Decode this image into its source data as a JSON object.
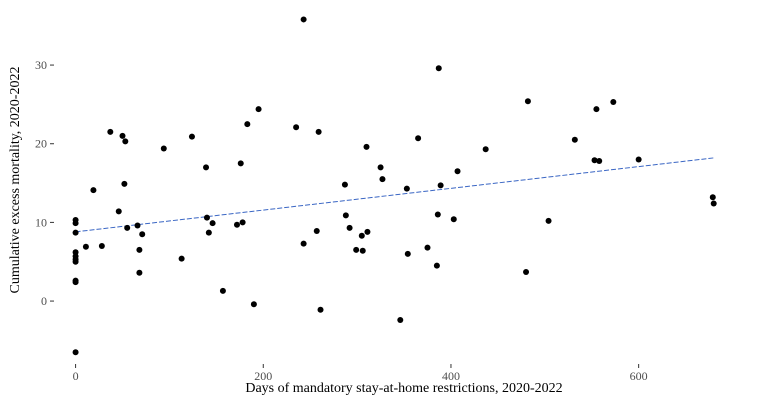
{
  "chart_data": {
    "type": "scatter",
    "xlabel": "Days of mandatory stay-at-home restrictions, 2020-2022",
    "ylabel": "Cumulative excess mortality, 2020-2022",
    "xlim": [
      -23,
      708
    ],
    "ylim": [
      -8,
      37
    ],
    "x_ticks": [
      0,
      200,
      400,
      600
    ],
    "y_ticks": [
      0,
      10,
      20,
      30
    ],
    "grid": false,
    "trend_line": {
      "style": "dashed",
      "color": "#3a66c4",
      "x": [
        0,
        680
      ],
      "y": [
        8.8,
        18.2
      ]
    },
    "point_color": "#000000",
    "points": [
      [
        0,
        -6.5
      ],
      [
        0,
        2.4
      ],
      [
        0,
        2.6
      ],
      [
        0,
        5.0
      ],
      [
        0,
        5.3
      ],
      [
        0,
        5.7
      ],
      [
        0,
        6.2
      ],
      [
        0,
        8.7
      ],
      [
        0,
        9.9
      ],
      [
        0,
        10.3
      ],
      [
        11,
        6.9
      ],
      [
        19,
        14.1
      ],
      [
        28,
        7.0
      ],
      [
        37,
        21.5
      ],
      [
        46,
        11.4
      ],
      [
        50,
        21.0
      ],
      [
        52,
        14.9
      ],
      [
        53,
        20.3
      ],
      [
        55,
        9.3
      ],
      [
        66,
        9.6
      ],
      [
        68,
        3.6
      ],
      [
        68,
        6.5
      ],
      [
        71,
        8.5
      ],
      [
        94,
        19.4
      ],
      [
        113,
        5.4
      ],
      [
        124,
        20.9
      ],
      [
        139,
        17.0
      ],
      [
        140,
        10.6
      ],
      [
        142,
        8.7
      ],
      [
        146,
        9.9
      ],
      [
        157,
        1.3
      ],
      [
        172,
        9.7
      ],
      [
        176,
        17.5
      ],
      [
        178,
        10.0
      ],
      [
        183,
        22.5
      ],
      [
        190,
        -0.4
      ],
      [
        195,
        24.4
      ],
      [
        235,
        22.1
      ],
      [
        243,
        35.8
      ],
      [
        243,
        7.3
      ],
      [
        257,
        8.9
      ],
      [
        259,
        21.5
      ],
      [
        261,
        -1.1
      ],
      [
        287,
        14.8
      ],
      [
        288,
        10.9
      ],
      [
        292,
        9.3
      ],
      [
        299,
        6.5
      ],
      [
        305,
        8.3
      ],
      [
        306,
        6.4
      ],
      [
        310,
        19.6
      ],
      [
        311,
        8.8
      ],
      [
        325,
        17.0
      ],
      [
        327,
        15.5
      ],
      [
        346,
        -2.4
      ],
      [
        353,
        14.3
      ],
      [
        354,
        6.0
      ],
      [
        365,
        20.7
      ],
      [
        375,
        6.8
      ],
      [
        385,
        4.5
      ],
      [
        386,
        11.0
      ],
      [
        387,
        29.6
      ],
      [
        389,
        14.7
      ],
      [
        403,
        10.4
      ],
      [
        407,
        16.5
      ],
      [
        437,
        19.3
      ],
      [
        480,
        3.7
      ],
      [
        482,
        25.4
      ],
      [
        504,
        10.2
      ],
      [
        532,
        20.5
      ],
      [
        553,
        17.9
      ],
      [
        555,
        24.4
      ],
      [
        558,
        17.8
      ],
      [
        573,
        25.3
      ],
      [
        600,
        18.0
      ],
      [
        679,
        13.2
      ],
      [
        680,
        12.4
      ]
    ]
  }
}
